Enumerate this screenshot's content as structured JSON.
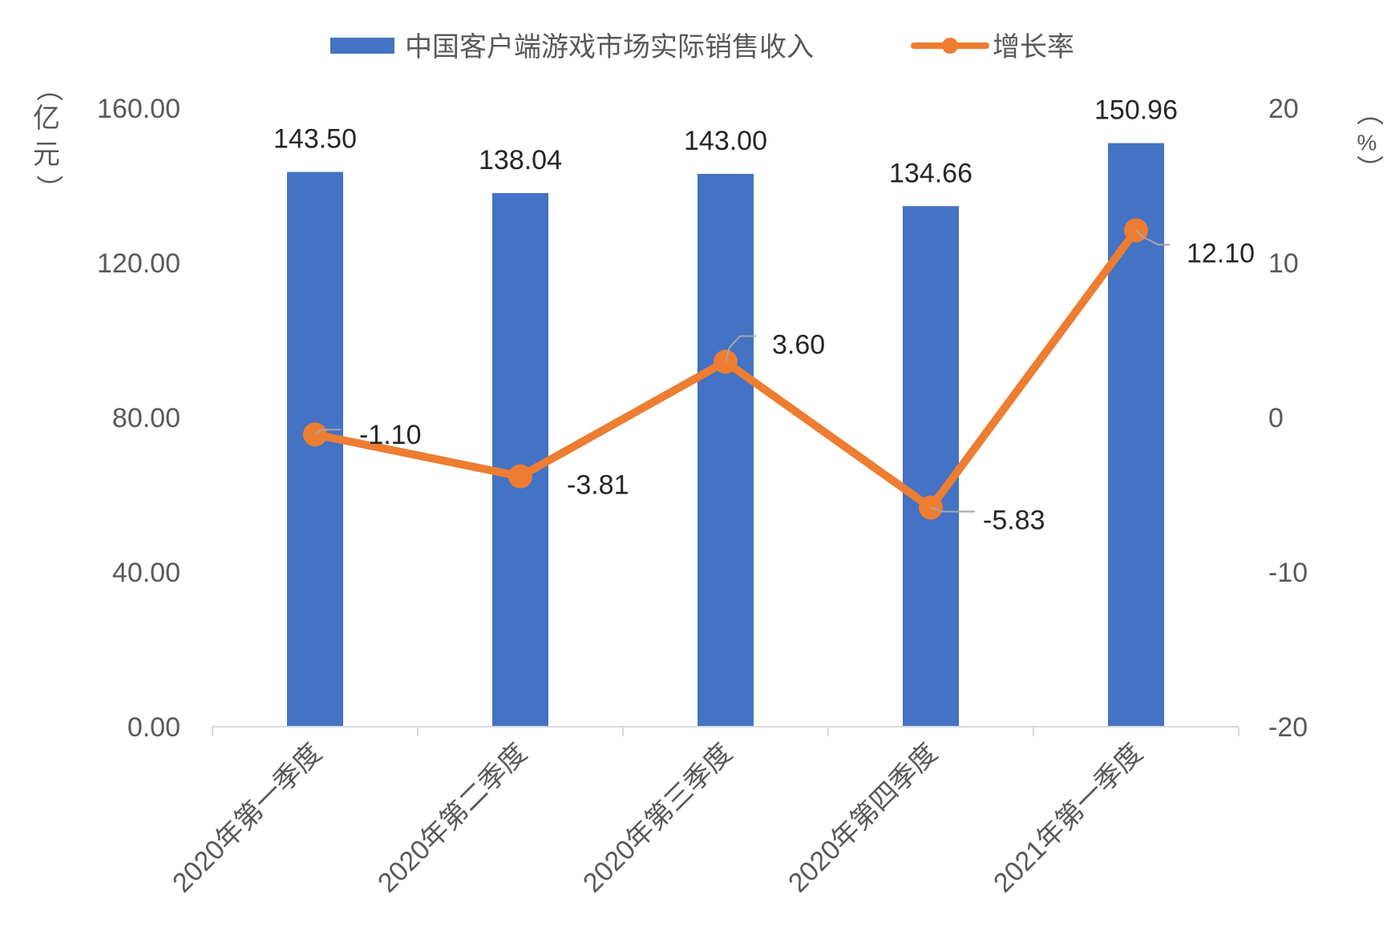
{
  "chart_data": {
    "type": "bar",
    "categories": [
      "2020年第一季度",
      "2020年第二季度",
      "2020年第三季度",
      "2020年第四季度",
      "2021年第一季度"
    ],
    "series": [
      {
        "name": "中国客户端游戏市场实际销售收入",
        "type": "bar",
        "axis": "left",
        "values": [
          143.5,
          138.04,
          143.0,
          134.66,
          150.96
        ],
        "labels": [
          "143.50",
          "138.04",
          "143.00",
          "134.66",
          "150.96"
        ],
        "color": "#4472C4"
      },
      {
        "name": "增长率",
        "type": "line",
        "axis": "right",
        "values": [
          -1.1,
          -3.81,
          3.6,
          -5.83,
          12.1
        ],
        "labels": [
          "-1.10",
          "-3.81",
          "3.60",
          "-5.83",
          "12.10"
        ],
        "color": "#ED7D31"
      }
    ],
    "y_left": {
      "label": "亿元",
      "label_chars": [
        "（",
        "亿",
        "元",
        "）"
      ],
      "ylim": [
        0,
        160
      ],
      "ticks": [
        "0.00",
        "40.00",
        "80.00",
        "120.00",
        "160.00"
      ]
    },
    "y_right": {
      "label": "%",
      "label_chars": [
        "（",
        "%",
        "）"
      ],
      "ylim": [
        -20,
        20
      ],
      "ticks": [
        "-20",
        "-10",
        "0",
        "10",
        "20"
      ]
    },
    "legend_position": "top-center",
    "grid": false
  }
}
